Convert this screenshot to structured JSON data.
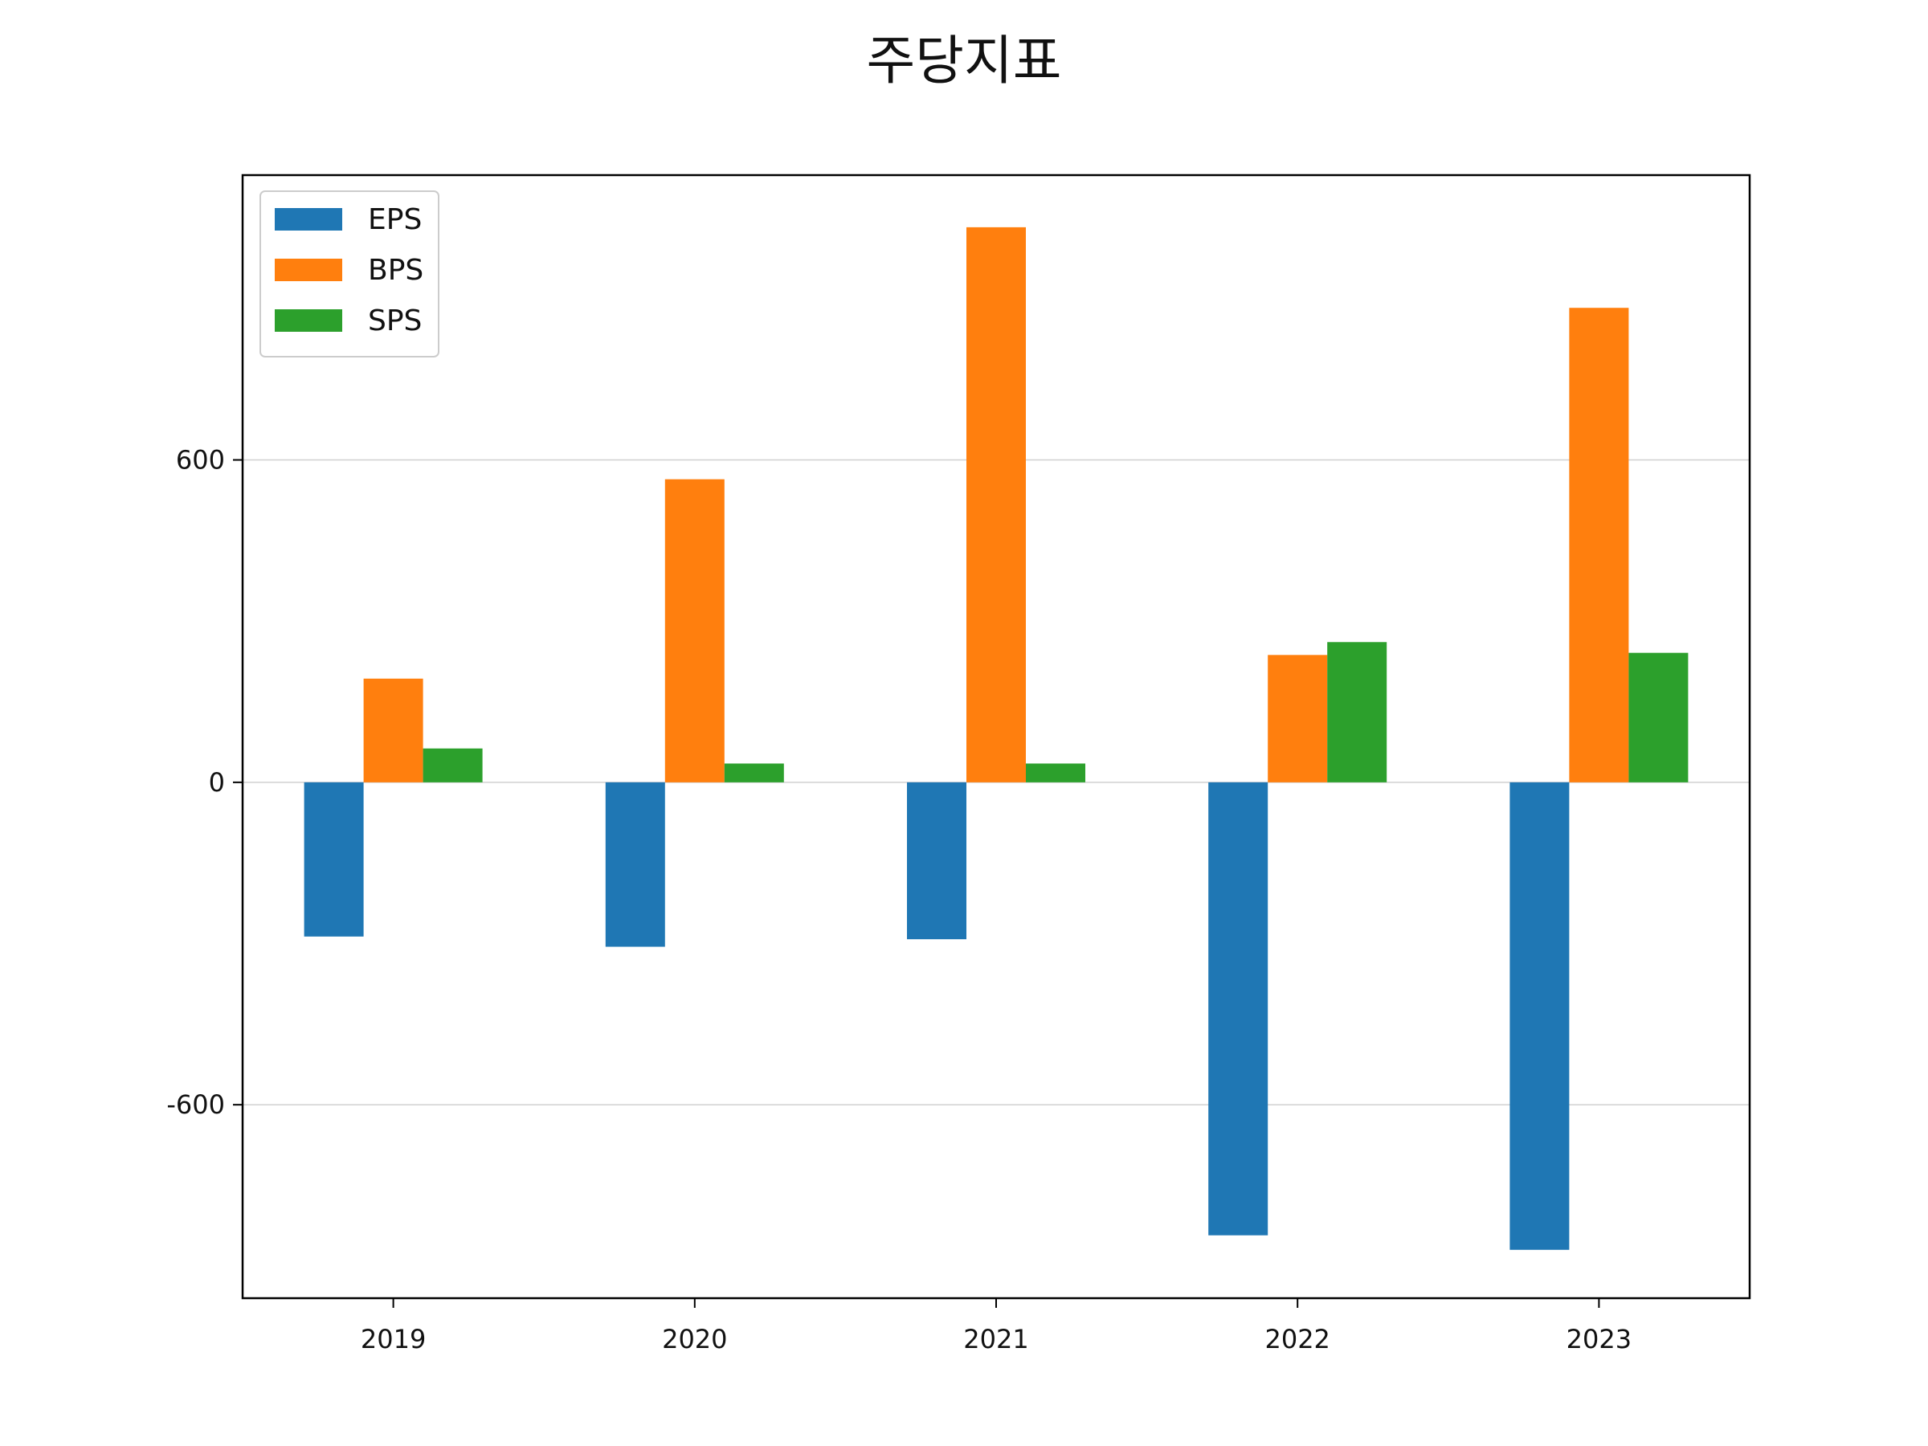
{
  "chart_data": {
    "type": "bar",
    "title": "주당지표",
    "xlabel": "",
    "ylabel": "",
    "categories": [
      "2019",
      "2020",
      "2021",
      "2022",
      "2023"
    ],
    "series": [
      {
        "name": "EPS",
        "color": "#1f77b4",
        "values": [
          -287,
          -306,
          -292,
          -843,
          -870
        ]
      },
      {
        "name": "BPS",
        "color": "#ff7f0e",
        "values": [
          193,
          564,
          1033,
          237,
          883
        ]
      },
      {
        "name": "SPS",
        "color": "#2ca02c",
        "values": [
          63,
          35,
          35,
          261,
          241
        ]
      }
    ],
    "yticks": [
      -600,
      0,
      600
    ],
    "yticklabels": [
      "-600",
      "0",
      "600"
    ],
    "ylim": [
      -960,
      1130
    ],
    "grid": "horizontal",
    "legend_position": "top-left"
  }
}
